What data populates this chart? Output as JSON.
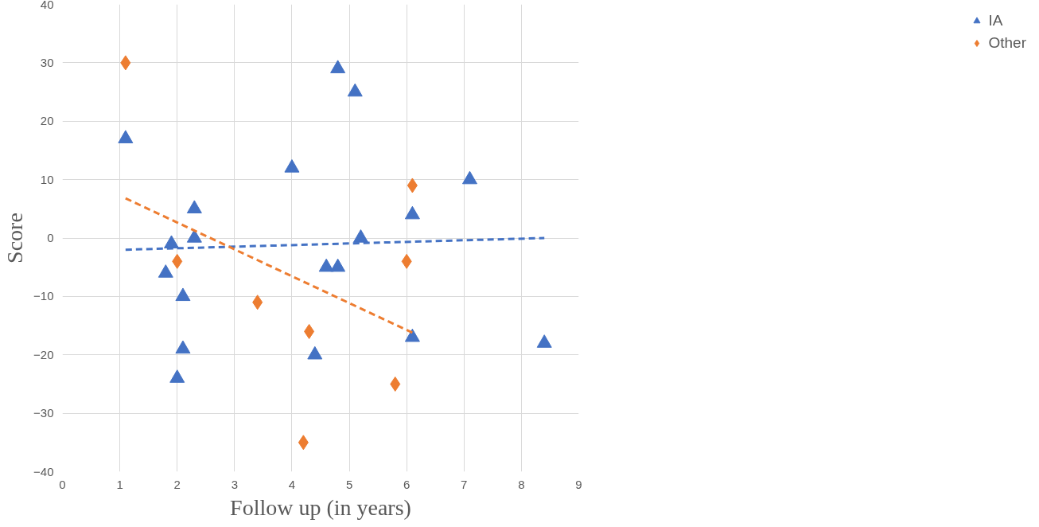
{
  "chart_data": {
    "type": "scatter",
    "xlabel": "Follow up (in years)",
    "ylabel": "Score",
    "xlim": [
      0,
      9
    ],
    "xticks": [
      0,
      1,
      2,
      3,
      4,
      5,
      6,
      7,
      8,
      9
    ],
    "ylim": [
      -40,
      40
    ],
    "yticks": [
      -40,
      -30,
      -20,
      -10,
      0,
      10,
      20,
      30,
      40
    ],
    "grid": true,
    "legend": "right",
    "series": [
      {
        "name": "IA",
        "color": "#4472c4",
        "marker": "triangle",
        "x": [
          1.1,
          1.8,
          1.9,
          2.0,
          2.1,
          2.1,
          2.3,
          2.3,
          4.0,
          4.4,
          4.6,
          4.8,
          4.8,
          5.1,
          5.2,
          6.1,
          6.1,
          7.1,
          8.4
        ],
        "values": [
          17,
          -6,
          -1,
          -24,
          -10,
          -19,
          5,
          0,
          12,
          -20,
          -5,
          29,
          -5,
          25,
          0,
          4,
          -17,
          10,
          -18
        ]
      },
      {
        "name": "Other",
        "color": "#ed7d31",
        "marker": "diamond",
        "x": [
          1.1,
          2.0,
          3.4,
          4.2,
          4.3,
          5.8,
          6.0,
          6.1
        ],
        "values": [
          30,
          -4,
          -11,
          -35,
          -16,
          -25,
          -4,
          9
        ]
      },
      {
        "type": "line",
        "line_style": "dashed",
        "color": "#4472c4",
        "x": [
          1.1,
          8.4
        ],
        "values": [
          -2,
          0
        ]
      },
      {
        "type": "line",
        "line_style": "dashed",
        "color": "#ed7d31",
        "x": [
          1.1,
          6.1
        ],
        "values": [
          6.8,
          -16.2
        ]
      }
    ]
  }
}
